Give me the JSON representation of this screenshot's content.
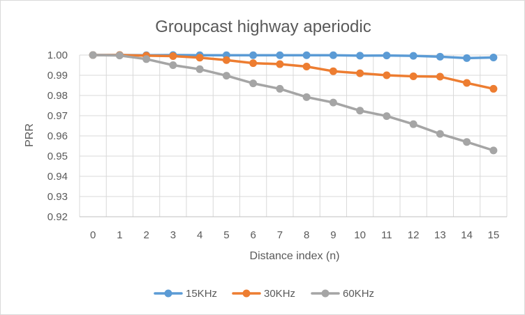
{
  "chart_data": {
    "type": "line",
    "title": "Groupcast highway aperiodic",
    "xlabel": "Distance index (n)",
    "ylabel": "PRR",
    "x": [
      0,
      1,
      2,
      3,
      4,
      5,
      6,
      7,
      8,
      9,
      10,
      11,
      12,
      13,
      14,
      15
    ],
    "ylim": [
      0.92,
      1.0
    ],
    "y_ticks": [
      "0.92",
      "0.93",
      "0.94",
      "0.95",
      "0.96",
      "0.97",
      "0.98",
      "0.99",
      "1.00"
    ],
    "grid": true,
    "legend": "bottom",
    "series": [
      {
        "name": "15KHz",
        "color": "#5b9bd5",
        "values": [
          1.0,
          1.0,
          0.9999,
          1.0,
          0.9999,
          0.9999,
          0.9999,
          0.9999,
          0.9999,
          0.9999,
          0.9997,
          0.9998,
          0.9996,
          0.9992,
          0.9985,
          0.9988
        ]
      },
      {
        "name": "30KHz",
        "color": "#ed7d31",
        "values": [
          1.0,
          1.0,
          0.9997,
          0.9995,
          0.9987,
          0.9975,
          0.996,
          0.9955,
          0.9943,
          0.992,
          0.991,
          0.99,
          0.9895,
          0.9893,
          0.9862,
          0.9833
        ]
      },
      {
        "name": "60KHz",
        "color": "#a5a5a5",
        "values": [
          1.0,
          0.9998,
          0.998,
          0.995,
          0.993,
          0.9898,
          0.986,
          0.9833,
          0.9792,
          0.9765,
          0.9725,
          0.9698,
          0.9658,
          0.961,
          0.957,
          0.9528
        ]
      }
    ]
  }
}
